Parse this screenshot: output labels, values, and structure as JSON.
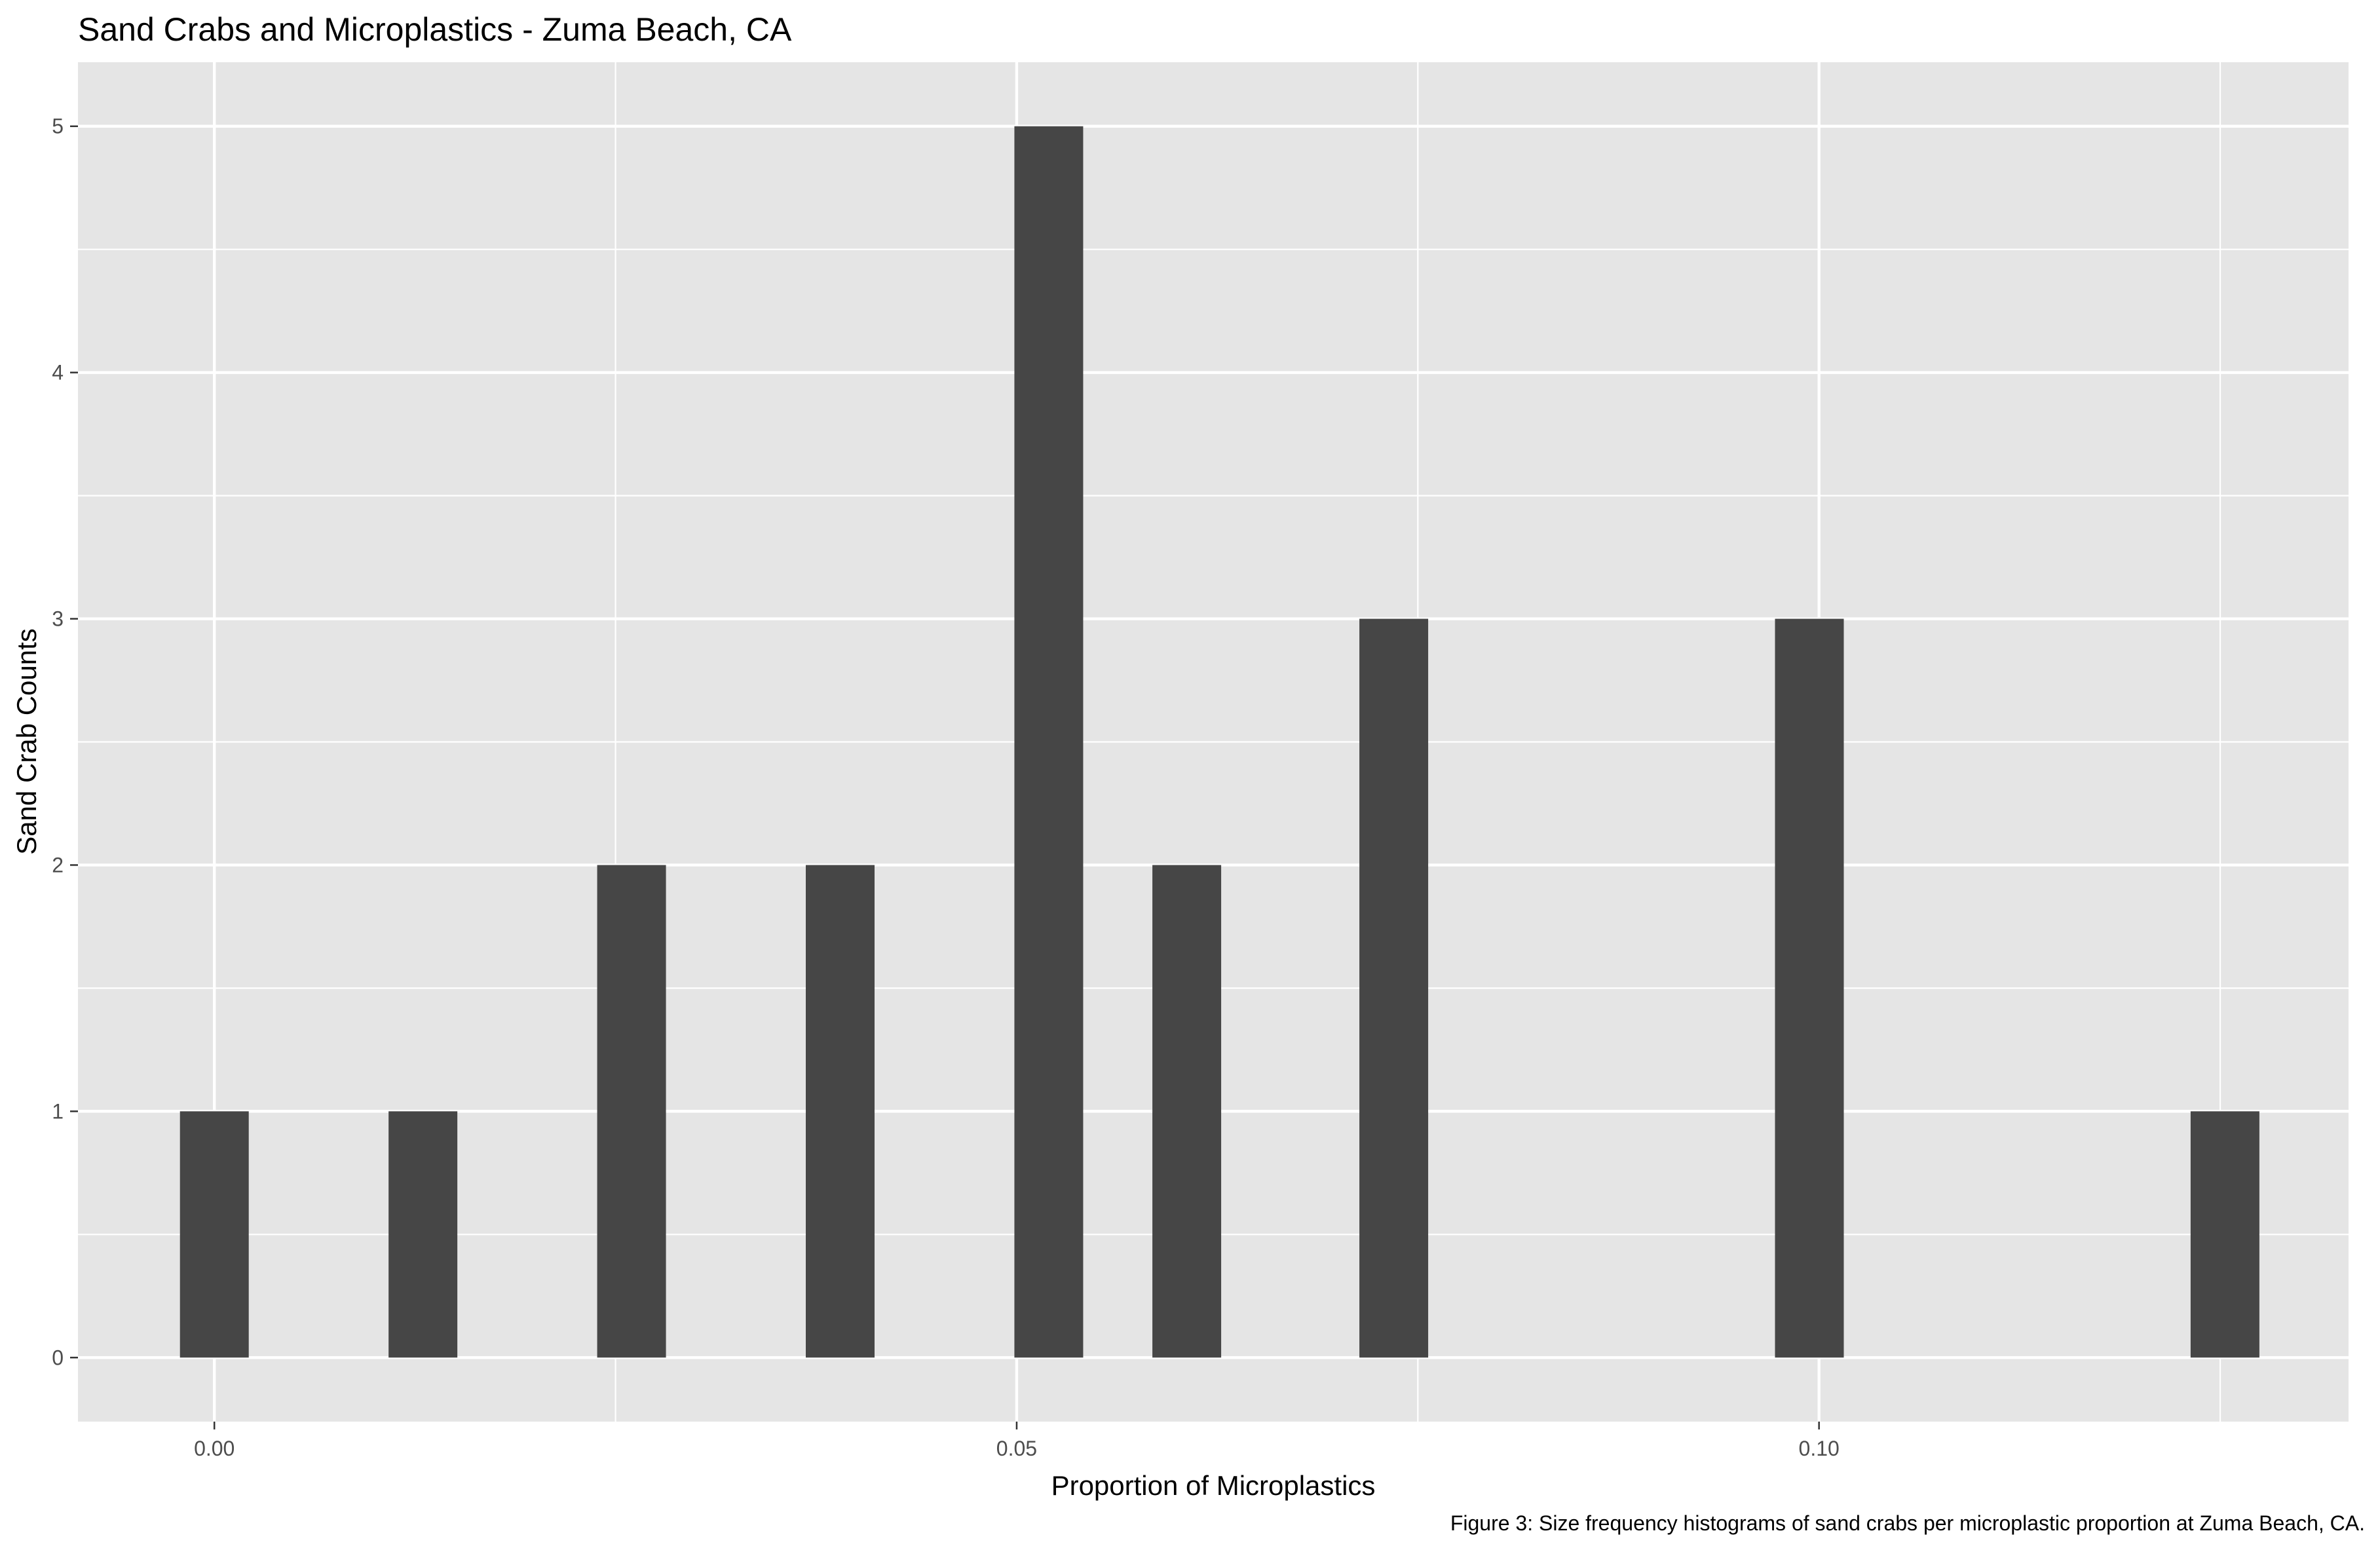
{
  "chart_data": {
    "type": "bar",
    "title": "Sand Crabs and Microplastics - Zuma Beach, CA",
    "xlabel": "Proportion of Microplastics",
    "ylabel": "Sand Crab Counts",
    "caption": "Figure 3: Size frequency histograms of sand crabs per microplastic proportion at Zuma Beach, CA.",
    "x": [
      0.0,
      0.013,
      0.026,
      0.039,
      0.052,
      0.0606,
      0.0735,
      0.0994,
      0.1253
    ],
    "values": [
      1,
      1,
      2,
      2,
      5,
      2,
      3,
      3,
      1
    ],
    "xlim": [
      -0.0085,
      0.133
    ],
    "ylim": [
      -0.26,
      5.26
    ],
    "x_ticks": [
      {
        "value": 0.0,
        "label": "0.00"
      },
      {
        "value": 0.05,
        "label": "0.05"
      },
      {
        "value": 0.1,
        "label": "0.10"
      }
    ],
    "y_ticks": [
      {
        "value": 0,
        "label": "0"
      },
      {
        "value": 1,
        "label": "1"
      },
      {
        "value": 2,
        "label": "2"
      },
      {
        "value": 3,
        "label": "3"
      },
      {
        "value": 4,
        "label": "4"
      },
      {
        "value": 5,
        "label": "5"
      }
    ],
    "grid": true,
    "colors": {
      "panel": "#e5e5e5",
      "grid": "#ffffff",
      "bar": "#464646",
      "tick_text": "#4d4d4d",
      "tick_mark": "#333333"
    }
  }
}
